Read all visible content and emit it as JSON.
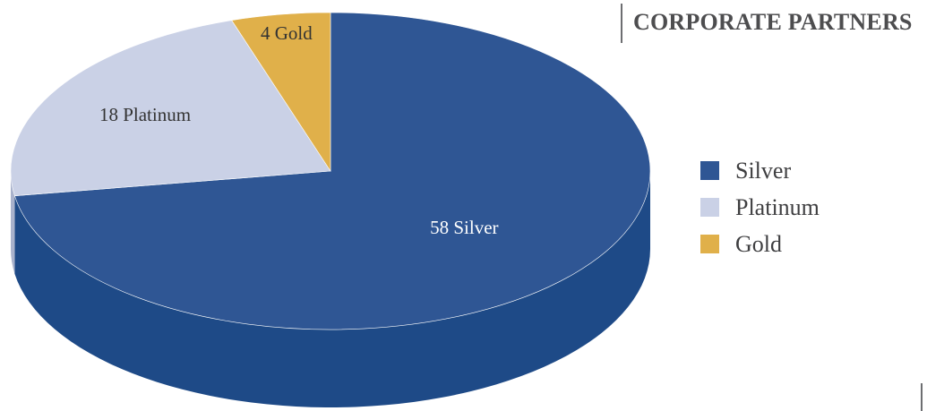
{
  "title": "CORPORATE PARTNERS",
  "chart_data": {
    "type": "pie",
    "title": "CORPORATE PARTNERS",
    "categories": [
      "Silver",
      "Platinum",
      "Gold"
    ],
    "values": [
      58,
      18,
      4
    ],
    "data_labels": [
      "58 Silver",
      "18 Platinum",
      "4 Gold"
    ],
    "colors": [
      "#2f5694",
      "#cad1e6",
      "#e0b04a"
    ],
    "side_colors": [
      "#1e4a87",
      "#a9b2cc",
      "#b98e33"
    ],
    "label_colors": [
      "#ffffff",
      "#333333",
      "#333333"
    ],
    "legend_position": "right",
    "style": "3d"
  },
  "legend": [
    {
      "label": "Silver",
      "color": "#2f5694"
    },
    {
      "label": "Platinum",
      "color": "#cad1e6"
    },
    {
      "label": "Gold",
      "color": "#e0b04a"
    }
  ]
}
